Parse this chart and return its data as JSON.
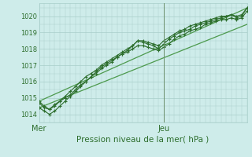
{
  "title": "",
  "xlabel": "Pression niveau de la mer( hPa )",
  "ylabel": "",
  "ylim": [
    1013.5,
    1020.8
  ],
  "xlim": [
    0,
    40
  ],
  "yticks": [
    1014,
    1015,
    1016,
    1017,
    1018,
    1019,
    1020
  ],
  "xtick_positions": [
    0,
    24
  ],
  "xtick_labels": [
    "Mer",
    "Jeu"
  ],
  "vline_x": 24,
  "bg_color": "#ceecea",
  "grid_color": "#a8ceca",
  "line_color": "#2d6e2d",
  "line_color_light": "#4d9a4d",
  "hours": [
    0,
    1,
    2,
    3,
    4,
    5,
    6,
    7,
    8,
    9,
    10,
    11,
    12,
    13,
    14,
    15,
    16,
    17,
    18,
    19,
    20,
    21,
    22,
    23,
    24,
    25,
    26,
    27,
    28,
    29,
    30,
    31,
    32,
    33,
    34,
    35,
    36,
    37,
    38,
    39,
    40
  ],
  "series1": [
    1014.8,
    1014.5,
    1014.3,
    1014.6,
    1014.8,
    1015.0,
    1015.2,
    1015.5,
    1015.8,
    1016.0,
    1016.3,
    1016.5,
    1016.8,
    1017.0,
    1017.2,
    1017.5,
    1017.7,
    1017.9,
    1018.2,
    1018.5,
    1018.5,
    1018.4,
    1018.3,
    1018.2,
    1018.5,
    1018.7,
    1018.9,
    1019.1,
    1019.2,
    1019.4,
    1019.5,
    1019.6,
    1019.7,
    1019.8,
    1019.9,
    1020.0,
    1020.0,
    1020.1,
    1019.9,
    1020.0,
    1020.5
  ],
  "series2": [
    1014.4,
    1014.2,
    1014.0,
    1014.2,
    1014.5,
    1014.8,
    1015.1,
    1015.4,
    1015.7,
    1016.0,
    1016.3,
    1016.6,
    1016.9,
    1017.1,
    1017.3,
    1017.5,
    1017.7,
    1017.8,
    1018.0,
    1018.2,
    1018.2,
    1018.1,
    1018.0,
    1017.9,
    1018.1,
    1018.3,
    1018.6,
    1018.8,
    1018.9,
    1019.1,
    1019.2,
    1019.3,
    1019.5,
    1019.6,
    1019.7,
    1019.8,
    1019.8,
    1019.9,
    1019.8,
    1019.9,
    1020.3
  ],
  "series3": [
    1014.7,
    1014.4,
    1014.3,
    1014.5,
    1014.8,
    1015.1,
    1015.4,
    1015.7,
    1016.0,
    1016.3,
    1016.5,
    1016.7,
    1017.0,
    1017.2,
    1017.4,
    1017.6,
    1017.8,
    1018.0,
    1018.2,
    1018.5,
    1018.4,
    1018.3,
    1018.2,
    1018.0,
    1018.3,
    1018.6,
    1018.8,
    1019.0,
    1019.1,
    1019.2,
    1019.4,
    1019.5,
    1019.6,
    1019.7,
    1019.8,
    1019.9,
    1020.0,
    1020.1,
    1020.0,
    1020.1,
    1020.5
  ],
  "trend1_y": [
    1014.8,
    1020.5
  ],
  "trend2_y": [
    1014.4,
    1019.5
  ],
  "trend_x": [
    0,
    40
  ]
}
